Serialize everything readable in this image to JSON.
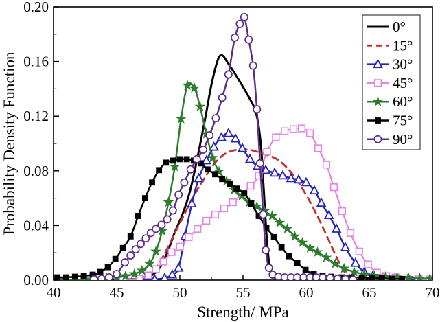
{
  "figure": {
    "background": "#ffffff",
    "frame_color": "#000000",
    "legend_border_color": "#4a4a4a"
  },
  "axes": {
    "x": {
      "title": "Strength/ MPa",
      "tick_labels": [
        "40",
        "45",
        "50",
        "55",
        "60",
        "65",
        "70"
      ],
      "tick_values": [
        40,
        45,
        50,
        55,
        60,
        65,
        70
      ],
      "minor_ticks": [
        42.5,
        47.5,
        52.5,
        57.5,
        62.5,
        67.5
      ]
    },
    "y": {
      "title": "Probability Density Function",
      "tick_labels": [
        "0.00",
        "0.04",
        "0.08",
        "0.12",
        "0.16",
        "0.20"
      ],
      "tick_values": [
        0,
        0.04,
        0.08,
        0.12,
        0.16,
        0.2
      ],
      "minor_ticks": [
        0.02,
        0.06,
        0.1,
        0.14,
        0.18
      ]
    }
  },
  "legend": {
    "entries": [
      "0°",
      "15°",
      "30°",
      "45°",
      "60°",
      "75°",
      "90°"
    ]
  },
  "chart_data": {
    "type": "line",
    "title": "",
    "xlabel": "Strength/ MPa",
    "ylabel": "Probability Density Function",
    "xlim": [
      40,
      70
    ],
    "ylim": [
      0,
      0.2
    ],
    "grid": false,
    "legend_position": "top-right",
    "series": [
      {
        "name": "0°",
        "color": "#000000",
        "line": "solid",
        "marker": "none",
        "width": 3,
        "points": [
          [
            44,
            0
          ],
          [
            46,
            0.0005
          ],
          [
            47,
            0.001
          ],
          [
            47.7,
            0.003
          ],
          [
            48.4,
            0.009
          ],
          [
            49,
            0.02
          ],
          [
            49.6,
            0.035
          ],
          [
            50.2,
            0.048
          ],
          [
            50.8,
            0.065
          ],
          [
            51.4,
            0.09
          ],
          [
            52,
            0.118
          ],
          [
            52.5,
            0.143
          ],
          [
            53,
            0.161
          ],
          [
            53.35,
            0.1645
          ],
          [
            53.8,
            0.159
          ],
          [
            54.3,
            0.152
          ],
          [
            54.9,
            0.143
          ],
          [
            55.4,
            0.135
          ],
          [
            55.9,
            0.126
          ],
          [
            56.2,
            0.115
          ],
          [
            56.45,
            0.095
          ],
          [
            56.65,
            0.065
          ],
          [
            56.85,
            0.035
          ],
          [
            57.05,
            0.014
          ],
          [
            57.3,
            0.005
          ],
          [
            57.7,
            0.002
          ],
          [
            58.5,
            0.001
          ],
          [
            60,
            0.0005
          ],
          [
            62,
            0
          ],
          [
            70,
            0
          ]
        ]
      },
      {
        "name": "15°",
        "color": "#c62f2f",
        "line": "dashed",
        "marker": "none",
        "width": 2.8,
        "points": [
          [
            45.5,
            0
          ],
          [
            46.5,
            0.001
          ],
          [
            47.3,
            0.003
          ],
          [
            48,
            0.008
          ],
          [
            48.6,
            0.016
          ],
          [
            49.2,
            0.027
          ],
          [
            49.8,
            0.038
          ],
          [
            50.4,
            0.049
          ],
          [
            51,
            0.06
          ],
          [
            51.7,
            0.071
          ],
          [
            52.4,
            0.081
          ],
          [
            53.1,
            0.089
          ],
          [
            53.8,
            0.0935
          ],
          [
            54.6,
            0.0955
          ],
          [
            55.4,
            0.0955
          ],
          [
            56.1,
            0.094
          ],
          [
            56.9,
            0.0915
          ],
          [
            57.7,
            0.0885
          ],
          [
            58.4,
            0.083
          ],
          [
            59.1,
            0.0755
          ],
          [
            59.8,
            0.0655
          ],
          [
            60.5,
            0.054
          ],
          [
            61.2,
            0.041
          ],
          [
            61.9,
            0.027
          ],
          [
            62.5,
            0.015
          ],
          [
            63,
            0.0065
          ],
          [
            63.5,
            0.0025
          ],
          [
            64.2,
            0.001
          ],
          [
            65.5,
            0
          ],
          [
            70,
            0
          ]
        ]
      },
      {
        "name": "30°",
        "color": "#2525bd",
        "line": "solid",
        "marker": "triangle-open",
        "width": 2.5,
        "points": [
          [
            47,
            0
          ],
          [
            48,
            0.0005
          ],
          [
            48.8,
            0.0015
          ],
          [
            49.4,
            0.004
          ],
          [
            49.9,
            0.009
          ],
          [
            50.4,
            0.032
          ],
          [
            50.95,
            0.056
          ],
          [
            51.5,
            0.0745
          ],
          [
            52.1,
            0.0875
          ],
          [
            52.7,
            0.0975
          ],
          [
            53.3,
            0.1045
          ],
          [
            53.85,
            0.1075
          ],
          [
            54.4,
            0.1035
          ],
          [
            54.95,
            0.0965
          ],
          [
            55.55,
            0.0885
          ],
          [
            56.15,
            0.0835
          ],
          [
            56.8,
            0.0805
          ],
          [
            57.5,
            0.0785
          ],
          [
            58.15,
            0.0765
          ],
          [
            58.8,
            0.0745
          ],
          [
            59.4,
            0.0735
          ],
          [
            60,
            0.0715
          ],
          [
            60.65,
            0.0655
          ],
          [
            61.2,
            0.0565
          ],
          [
            61.8,
            0.0475
          ],
          [
            62.4,
            0.0375
          ],
          [
            63.1,
            0.024
          ],
          [
            63.9,
            0.0125
          ],
          [
            64.6,
            0.006
          ],
          [
            65.3,
            0.0035
          ],
          [
            66.1,
            0.002
          ],
          [
            67,
            0.0012
          ],
          [
            68,
            0.0006
          ],
          [
            69,
            0.0003
          ],
          [
            70,
            0
          ]
        ]
      },
      {
        "name": "45°",
        "color": "#e583e5",
        "line": "solid",
        "marker": "square-open",
        "width": 2.2,
        "points": [
          [
            45.5,
            0
          ],
          [
            46.8,
            0.001
          ],
          [
            47.5,
            0.0035
          ],
          [
            48.1,
            0.008
          ],
          [
            48.7,
            0.0135
          ],
          [
            49.35,
            0.0205
          ],
          [
            50,
            0.0245
          ],
          [
            50.7,
            0.0315
          ],
          [
            51.4,
            0.0375
          ],
          [
            52.1,
            0.0435
          ],
          [
            52.8,
            0.048
          ],
          [
            53.5,
            0.0525
          ],
          [
            54.2,
            0.057
          ],
          [
            54.9,
            0.063
          ],
          [
            55.6,
            0.069
          ],
          [
            56.25,
            0.0765
          ],
          [
            56.9,
            0.094
          ],
          [
            57.6,
            0.1045
          ],
          [
            58.3,
            0.109
          ],
          [
            59,
            0.1105
          ],
          [
            59.65,
            0.111
          ],
          [
            60.3,
            0.1075
          ],
          [
            60.95,
            0.0965
          ],
          [
            61.6,
            0.0845
          ],
          [
            62.2,
            0.068
          ],
          [
            62.85,
            0.0505
          ],
          [
            63.5,
            0.0345
          ],
          [
            64.2,
            0.021
          ],
          [
            64.9,
            0.0115
          ],
          [
            65.6,
            0.0055
          ],
          [
            66.35,
            0.003
          ],
          [
            67.1,
            0.002
          ],
          [
            68,
            0.0013
          ],
          [
            68.9,
            0.0008
          ],
          [
            69.8,
            0.0005
          ]
        ]
      },
      {
        "name": "60°",
        "color": "#2e7d2e",
        "line": "solid",
        "marker": "star-filled",
        "width": 2.5,
        "points": [
          [
            40.5,
            0
          ],
          [
            42.5,
            0.0005
          ],
          [
            43.4,
            0.001
          ],
          [
            44.2,
            0.0015
          ],
          [
            45,
            0.002
          ],
          [
            45.7,
            0.003
          ],
          [
            46.4,
            0.0045
          ],
          [
            47,
            0.007
          ],
          [
            47.6,
            0.012
          ],
          [
            48.1,
            0.021
          ],
          [
            48.6,
            0.036
          ],
          [
            49.1,
            0.057
          ],
          [
            49.6,
            0.083
          ],
          [
            50.1,
            0.118
          ],
          [
            50.6,
            0.1425
          ],
          [
            51.15,
            0.1405
          ],
          [
            51.6,
            0.127
          ],
          [
            52.1,
            0.107
          ],
          [
            52.6,
            0.0895
          ],
          [
            53.1,
            0.0795
          ],
          [
            53.7,
            0.0725
          ],
          [
            54.3,
            0.066
          ],
          [
            54.9,
            0.0615
          ],
          [
            55.5,
            0.057
          ],
          [
            56.1,
            0.054
          ],
          [
            56.7,
            0.0505
          ],
          [
            57.3,
            0.047
          ],
          [
            57.9,
            0.042
          ],
          [
            58.5,
            0.0375
          ],
          [
            59.1,
            0.032
          ],
          [
            59.7,
            0.0275
          ],
          [
            60.3,
            0.0235
          ],
          [
            60.9,
            0.0205
          ],
          [
            61.6,
            0.0165
          ],
          [
            62.3,
            0.012
          ],
          [
            63,
            0.0085
          ],
          [
            63.8,
            0.006
          ],
          [
            64.6,
            0.0042
          ],
          [
            65.4,
            0.0032
          ],
          [
            66.3,
            0.0026
          ],
          [
            67.2,
            0.0021
          ],
          [
            68.1,
            0.0017
          ],
          [
            69,
            0.0013
          ],
          [
            69.8,
            0.001
          ]
        ]
      },
      {
        "name": "75°",
        "color": "#000000",
        "line": "solid",
        "marker": "square-filled",
        "width": 2.5,
        "points": [
          [
            40.3,
            0.002
          ],
          [
            41,
            0.002
          ],
          [
            41.7,
            0.0025
          ],
          [
            42.4,
            0.003
          ],
          [
            43.1,
            0.004
          ],
          [
            43.7,
            0.006
          ],
          [
            44.3,
            0.0095
          ],
          [
            44.9,
            0.0155
          ],
          [
            45.5,
            0.0235
          ],
          [
            46.1,
            0.032
          ],
          [
            46.7,
            0.047
          ],
          [
            47.25,
            0.06
          ],
          [
            47.8,
            0.0715
          ],
          [
            48.35,
            0.0805
          ],
          [
            48.9,
            0.086
          ],
          [
            49.45,
            0.0875
          ],
          [
            50,
            0.0885
          ],
          [
            50.55,
            0.0885
          ],
          [
            51.1,
            0.0875
          ],
          [
            51.65,
            0.0855
          ],
          [
            52.2,
            0.081
          ],
          [
            52.8,
            0.0775
          ],
          [
            53.35,
            0.074
          ],
          [
            53.95,
            0.0705
          ],
          [
            54.5,
            0.067
          ],
          [
            55.1,
            0.0635
          ],
          [
            55.65,
            0.056
          ],
          [
            56.25,
            0.047
          ],
          [
            56.85,
            0.0385
          ],
          [
            57.45,
            0.0315
          ],
          [
            58.05,
            0.024
          ],
          [
            58.65,
            0.0175
          ],
          [
            59.3,
            0.0125
          ],
          [
            59.95,
            0.0075
          ],
          [
            60.6,
            0.0045
          ],
          [
            61.3,
            0.003
          ],
          [
            62,
            0.0025
          ],
          [
            62.8,
            0.002
          ],
          [
            63.6,
            0.002
          ],
          [
            64.4,
            0.0018
          ],
          [
            65.2,
            0.0015
          ],
          [
            66,
            0.0013
          ],
          [
            66.8,
            0.001
          ],
          [
            67.6,
            0.0008
          ]
        ]
      },
      {
        "name": "90°",
        "color": "#5e2b8a",
        "line": "solid",
        "marker": "circle-open",
        "width": 2.5,
        "points": [
          [
            43.2,
            0.0005
          ],
          [
            43.8,
            0.001
          ],
          [
            44.4,
            0.002
          ],
          [
            45,
            0.0045
          ],
          [
            45.65,
            0.013
          ],
          [
            46.1,
            0.018
          ],
          [
            46.5,
            0.0225
          ],
          [
            46.9,
            0.0265
          ],
          [
            47.3,
            0.0305
          ],
          [
            47.7,
            0.0345
          ],
          [
            48.1,
            0.0375
          ],
          [
            48.55,
            0.0405
          ],
          [
            49,
            0.0445
          ],
          [
            49.45,
            0.051
          ],
          [
            49.9,
            0.0625
          ],
          [
            50.35,
            0.0715
          ],
          [
            50.85,
            0.081
          ],
          [
            51.35,
            0.0885
          ],
          [
            51.85,
            0.0955
          ],
          [
            52.35,
            0.106
          ],
          [
            52.85,
            0.1185
          ],
          [
            53.35,
            0.1335
          ],
          [
            53.85,
            0.1505
          ],
          [
            54.35,
            0.1775
          ],
          [
            54.75,
            0.1875
          ],
          [
            55.1,
            0.1925
          ],
          [
            55.45,
            0.176
          ],
          [
            55.8,
            0.157
          ],
          [
            56.1,
            0.125
          ],
          [
            56.35,
            0.0855
          ],
          [
            56.6,
            0.048
          ],
          [
            56.8,
            0.022
          ],
          [
            57.05,
            0.009
          ],
          [
            57.35,
            0.004
          ],
          [
            57.8,
            0.0025
          ],
          [
            58.3,
            0.002
          ],
          [
            58.8,
            0.002
          ],
          [
            59.3,
            0.002
          ],
          [
            59.8,
            0.002
          ],
          [
            60.3,
            0.002
          ],
          [
            60.8,
            0.002
          ],
          [
            61.3,
            0.0018
          ],
          [
            61.9,
            0.0015
          ],
          [
            62.5,
            0.001
          ],
          [
            63.1,
            0.0007
          ],
          [
            63.7,
            0.0004
          ]
        ]
      }
    ]
  }
}
